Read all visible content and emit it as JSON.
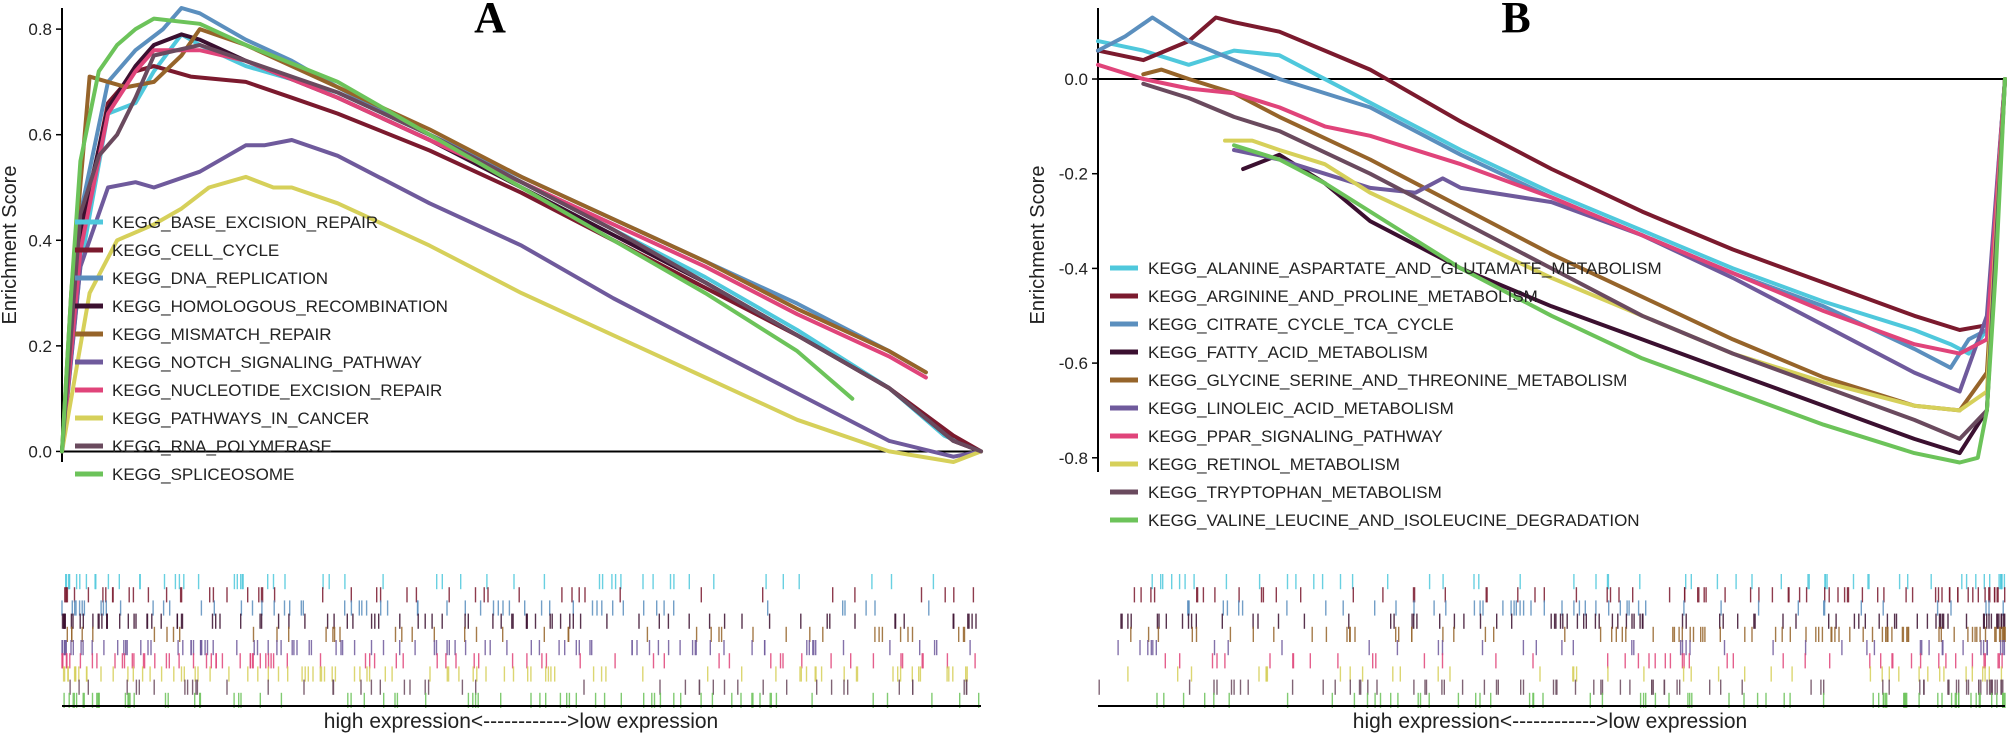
{
  "figure": {
    "panels": [
      "A",
      "B"
    ]
  },
  "chart_data": [
    {
      "type": "line",
      "panel": "A",
      "title": "A",
      "ylabel": "Enrichment Score",
      "xlabel": "high expression<------------>low expression",
      "x_range": [
        0,
        1
      ],
      "ylim": [
        -0.02,
        0.84
      ],
      "yticks": [
        0.0,
        0.2,
        0.4,
        0.6,
        0.8
      ],
      "ytick_labels": [
        "0.0",
        "0.2",
        "0.4",
        "0.6",
        "0.8"
      ],
      "legend_position": "left",
      "series": [
        {
          "name": "KEGG_BASE_EXCISION_REPAIR",
          "color": "#4fc8dc",
          "x": [
            0,
            0.02,
            0.05,
            0.08,
            0.1,
            0.13,
            0.15,
            0.2,
            0.3,
            0.4,
            0.5,
            0.6,
            0.7,
            0.8,
            0.9,
            0.96,
            1
          ],
          "y": [
            0,
            0.35,
            0.64,
            0.66,
            0.72,
            0.79,
            0.77,
            0.73,
            0.68,
            0.6,
            0.51,
            0.42,
            0.33,
            0.23,
            0.12,
            0.03,
            0.0
          ]
        },
        {
          "name": "KEGG_CELL_CYCLE",
          "color": "#7b1a2e",
          "x": [
            0,
            0.02,
            0.05,
            0.08,
            0.1,
            0.14,
            0.2,
            0.25,
            0.3,
            0.4,
            0.5,
            0.6,
            0.7,
            0.8,
            0.9,
            0.97,
            1
          ],
          "y": [
            0,
            0.4,
            0.66,
            0.72,
            0.73,
            0.71,
            0.7,
            0.67,
            0.64,
            0.57,
            0.49,
            0.4,
            0.31,
            0.22,
            0.12,
            0.03,
            0.0
          ]
        },
        {
          "name": "KEGG_DNA_REPLICATION",
          "color": "#5b8fbe",
          "x": [
            0,
            0.02,
            0.05,
            0.08,
            0.11,
            0.13,
            0.15,
            0.2,
            0.25,
            0.3,
            0.4,
            0.5,
            0.6,
            0.7,
            0.8,
            0.9,
            0.94
          ],
          "y": [
            0,
            0.45,
            0.7,
            0.76,
            0.8,
            0.84,
            0.83,
            0.78,
            0.74,
            0.69,
            0.6,
            0.52,
            0.44,
            0.36,
            0.28,
            0.19,
            0.15
          ]
        },
        {
          "name": "KEGG_HOMOLOGOUS_RECOMBINATION",
          "color": "#3b1030",
          "x": [
            0,
            0.02,
            0.05,
            0.08,
            0.1,
            0.13,
            0.15,
            0.2,
            0.3,
            0.4,
            0.5,
            0.6,
            0.7,
            0.8,
            0.9,
            0.97,
            1
          ],
          "y": [
            0,
            0.42,
            0.65,
            0.73,
            0.77,
            0.79,
            0.78,
            0.74,
            0.67,
            0.59,
            0.5,
            0.41,
            0.32,
            0.22,
            0.12,
            0.02,
            0.0
          ]
        },
        {
          "name": "KEGG_MISMATCH_REPAIR",
          "color": "#96642a",
          "x": [
            0,
            0.01,
            0.03,
            0.05,
            0.07,
            0.1,
            0.13,
            0.15,
            0.2,
            0.3,
            0.4,
            0.5,
            0.6,
            0.7,
            0.8,
            0.9,
            0.94
          ],
          "y": [
            0,
            0.3,
            0.71,
            0.7,
            0.69,
            0.7,
            0.75,
            0.8,
            0.77,
            0.69,
            0.61,
            0.52,
            0.44,
            0.36,
            0.27,
            0.19,
            0.15
          ]
        },
        {
          "name": "KEGG_NOTCH_SIGNALING_PATHWAY",
          "color": "#6f5a9c",
          "x": [
            0,
            0.02,
            0.05,
            0.08,
            0.1,
            0.15,
            0.2,
            0.22,
            0.25,
            0.3,
            0.4,
            0.5,
            0.6,
            0.7,
            0.8,
            0.9,
            0.97,
            1
          ],
          "y": [
            0,
            0.35,
            0.5,
            0.51,
            0.5,
            0.53,
            0.58,
            0.58,
            0.59,
            0.56,
            0.47,
            0.39,
            0.29,
            0.2,
            0.11,
            0.02,
            -0.01,
            0.0
          ]
        },
        {
          "name": "KEGG_NUCLEOTIDE_EXCISION_REPAIR",
          "color": "#e0447a",
          "x": [
            0,
            0.02,
            0.05,
            0.08,
            0.1,
            0.15,
            0.2,
            0.3,
            0.4,
            0.5,
            0.6,
            0.7,
            0.8,
            0.9,
            0.94
          ],
          "y": [
            0,
            0.38,
            0.64,
            0.72,
            0.76,
            0.76,
            0.74,
            0.67,
            0.59,
            0.51,
            0.43,
            0.35,
            0.26,
            0.18,
            0.14
          ]
        },
        {
          "name": "KEGG_PATHWAYS_IN_CANCER",
          "color": "#d6d05a",
          "x": [
            0,
            0.03,
            0.06,
            0.1,
            0.13,
            0.16,
            0.2,
            0.23,
            0.25,
            0.3,
            0.4,
            0.5,
            0.6,
            0.7,
            0.8,
            0.9,
            0.97,
            1
          ],
          "y": [
            0,
            0.3,
            0.4,
            0.43,
            0.46,
            0.5,
            0.52,
            0.5,
            0.5,
            0.47,
            0.39,
            0.3,
            0.22,
            0.14,
            0.06,
            0.0,
            -0.02,
            0.0
          ]
        },
        {
          "name": "KEGG_RNA_POLYMERASE",
          "color": "#6a4a5e",
          "x": [
            0,
            0.02,
            0.04,
            0.06,
            0.08,
            0.1,
            0.15,
            0.2,
            0.3,
            0.4,
            0.5,
            0.6,
            0.7,
            0.8,
            0.9,
            0.97,
            1
          ],
          "y": [
            0,
            0.45,
            0.56,
            0.6,
            0.67,
            0.75,
            0.77,
            0.74,
            0.68,
            0.6,
            0.51,
            0.42,
            0.32,
            0.22,
            0.12,
            0.02,
            0.0
          ]
        },
        {
          "name": "KEGG_SPLICEOSOME",
          "color": "#6cc35a",
          "x": [
            0,
            0.01,
            0.02,
            0.04,
            0.06,
            0.08,
            0.1,
            0.15,
            0.2,
            0.3,
            0.4,
            0.5,
            0.6,
            0.7,
            0.8,
            0.86
          ],
          "y": [
            0,
            0.3,
            0.55,
            0.72,
            0.77,
            0.8,
            0.82,
            0.81,
            0.77,
            0.7,
            0.6,
            0.5,
            0.4,
            0.3,
            0.19,
            0.1
          ]
        }
      ]
    },
    {
      "type": "line",
      "panel": "B",
      "title": "B",
      "ylabel": "Enrichment Score",
      "xlabel": "high expression<------------>low expression",
      "x_range": [
        0,
        1
      ],
      "ylim": [
        -0.83,
        0.15
      ],
      "yticks": [
        0.0,
        -0.2,
        -0.4,
        -0.6,
        -0.8
      ],
      "ytick_labels": [
        "0.0",
        "-0.2",
        "-0.4",
        "-0.6",
        "-0.8"
      ],
      "legend_position": "left",
      "series": [
        {
          "name": "KEGG_ALANINE_ASPARTATE_AND_GLUTAMATE_METABOLISM",
          "color": "#4fc8dc",
          "x": [
            0,
            0.05,
            0.1,
            0.15,
            0.2,
            0.3,
            0.4,
            0.5,
            0.6,
            0.7,
            0.8,
            0.9,
            0.94,
            0.96,
            0.98,
            1
          ],
          "y": [
            0.08,
            0.06,
            0.03,
            0.06,
            0.05,
            -0.05,
            -0.15,
            -0.24,
            -0.32,
            -0.4,
            -0.47,
            -0.53,
            -0.56,
            -0.58,
            -0.53,
            0.0
          ]
        },
        {
          "name": "KEGG_ARGININE_AND_PROLINE_METABOLISM",
          "color": "#7b1a2e",
          "x": [
            0,
            0.05,
            0.1,
            0.13,
            0.15,
            0.2,
            0.25,
            0.3,
            0.4,
            0.5,
            0.6,
            0.7,
            0.8,
            0.9,
            0.95,
            0.98,
            1
          ],
          "y": [
            0.06,
            0.04,
            0.08,
            0.13,
            0.12,
            0.1,
            0.06,
            0.02,
            -0.09,
            -0.19,
            -0.28,
            -0.36,
            -0.43,
            -0.5,
            -0.53,
            -0.52,
            0.0
          ]
        },
        {
          "name": "KEGG_CITRATE_CYCLE_TCA_CYCLE",
          "color": "#5b8fbe",
          "x": [
            0,
            0.03,
            0.06,
            0.1,
            0.15,
            0.2,
            0.3,
            0.4,
            0.5,
            0.6,
            0.7,
            0.8,
            0.9,
            0.94,
            0.96,
            0.98,
            1
          ],
          "y": [
            0.06,
            0.09,
            0.13,
            0.08,
            0.04,
            0.0,
            -0.06,
            -0.16,
            -0.25,
            -0.33,
            -0.41,
            -0.48,
            -0.57,
            -0.61,
            -0.55,
            -0.53,
            0.0
          ]
        },
        {
          "name": "KEGG_FATTY_ACID_METABOLISM",
          "color": "#3b1030",
          "x": [
            0.16,
            0.2,
            0.25,
            0.3,
            0.4,
            0.5,
            0.6,
            0.7,
            0.8,
            0.9,
            0.95,
            0.98,
            1
          ],
          "y": [
            -0.19,
            -0.16,
            -0.22,
            -0.3,
            -0.4,
            -0.48,
            -0.55,
            -0.62,
            -0.69,
            -0.76,
            -0.79,
            -0.7,
            0.0
          ]
        },
        {
          "name": "KEGG_GLYCINE_SERINE_AND_THREONINE_METABOLISM",
          "color": "#96642a",
          "x": [
            0.05,
            0.07,
            0.1,
            0.15,
            0.2,
            0.3,
            0.4,
            0.5,
            0.6,
            0.7,
            0.8,
            0.9,
            0.95,
            0.98,
            1
          ],
          "y": [
            0.01,
            0.02,
            0.0,
            -0.03,
            -0.08,
            -0.17,
            -0.27,
            -0.37,
            -0.46,
            -0.55,
            -0.63,
            -0.69,
            -0.7,
            -0.62,
            0.0
          ]
        },
        {
          "name": "KEGG_LINOLEIC_ACID_METABOLISM",
          "color": "#6f5a9c",
          "x": [
            0.15,
            0.2,
            0.25,
            0.3,
            0.35,
            0.38,
            0.4,
            0.5,
            0.6,
            0.7,
            0.8,
            0.9,
            0.95,
            0.98,
            1
          ],
          "y": [
            -0.15,
            -0.17,
            -0.2,
            -0.23,
            -0.24,
            -0.21,
            -0.23,
            -0.26,
            -0.33,
            -0.42,
            -0.52,
            -0.62,
            -0.66,
            -0.5,
            0.0
          ]
        },
        {
          "name": "KEGG_PPAR_SIGNALING_PATHWAY",
          "color": "#e0447a",
          "x": [
            0,
            0.05,
            0.1,
            0.15,
            0.2,
            0.25,
            0.3,
            0.4,
            0.5,
            0.6,
            0.7,
            0.8,
            0.9,
            0.95,
            0.98,
            1
          ],
          "y": [
            0.03,
            0.0,
            -0.02,
            -0.03,
            -0.06,
            -0.1,
            -0.12,
            -0.18,
            -0.25,
            -0.33,
            -0.41,
            -0.49,
            -0.56,
            -0.58,
            -0.55,
            0.0
          ]
        },
        {
          "name": "KEGG_RETINOL_METABOLISM",
          "color": "#d6d05a",
          "x": [
            0.14,
            0.17,
            0.2,
            0.25,
            0.3,
            0.4,
            0.5,
            0.6,
            0.7,
            0.8,
            0.9,
            0.95,
            0.98,
            1
          ],
          "y": [
            -0.13,
            -0.13,
            -0.15,
            -0.18,
            -0.24,
            -0.33,
            -0.42,
            -0.5,
            -0.58,
            -0.64,
            -0.69,
            -0.7,
            -0.66,
            0.0
          ]
        },
        {
          "name": "KEGG_TRYPTOPHAN_METABOLISM",
          "color": "#6a4a5e",
          "x": [
            0.05,
            0.1,
            0.15,
            0.2,
            0.3,
            0.4,
            0.5,
            0.6,
            0.7,
            0.8,
            0.9,
            0.95,
            0.98,
            1
          ],
          "y": [
            -0.01,
            -0.04,
            -0.08,
            -0.11,
            -0.2,
            -0.3,
            -0.4,
            -0.5,
            -0.58,
            -0.65,
            -0.72,
            -0.76,
            -0.7,
            0.0
          ]
        },
        {
          "name": "KEGG_VALINE_LEUCINE_AND_ISOLEUCINE_DEGRADATION",
          "color": "#6cc35a",
          "x": [
            0.15,
            0.2,
            0.25,
            0.3,
            0.4,
            0.5,
            0.6,
            0.7,
            0.8,
            0.9,
            0.95,
            0.97,
            0.98,
            0.99,
            1
          ],
          "y": [
            -0.14,
            -0.17,
            -0.22,
            -0.28,
            -0.4,
            -0.5,
            -0.59,
            -0.66,
            -0.73,
            -0.79,
            -0.81,
            -0.8,
            -0.7,
            -0.4,
            0.0
          ]
        }
      ]
    }
  ]
}
